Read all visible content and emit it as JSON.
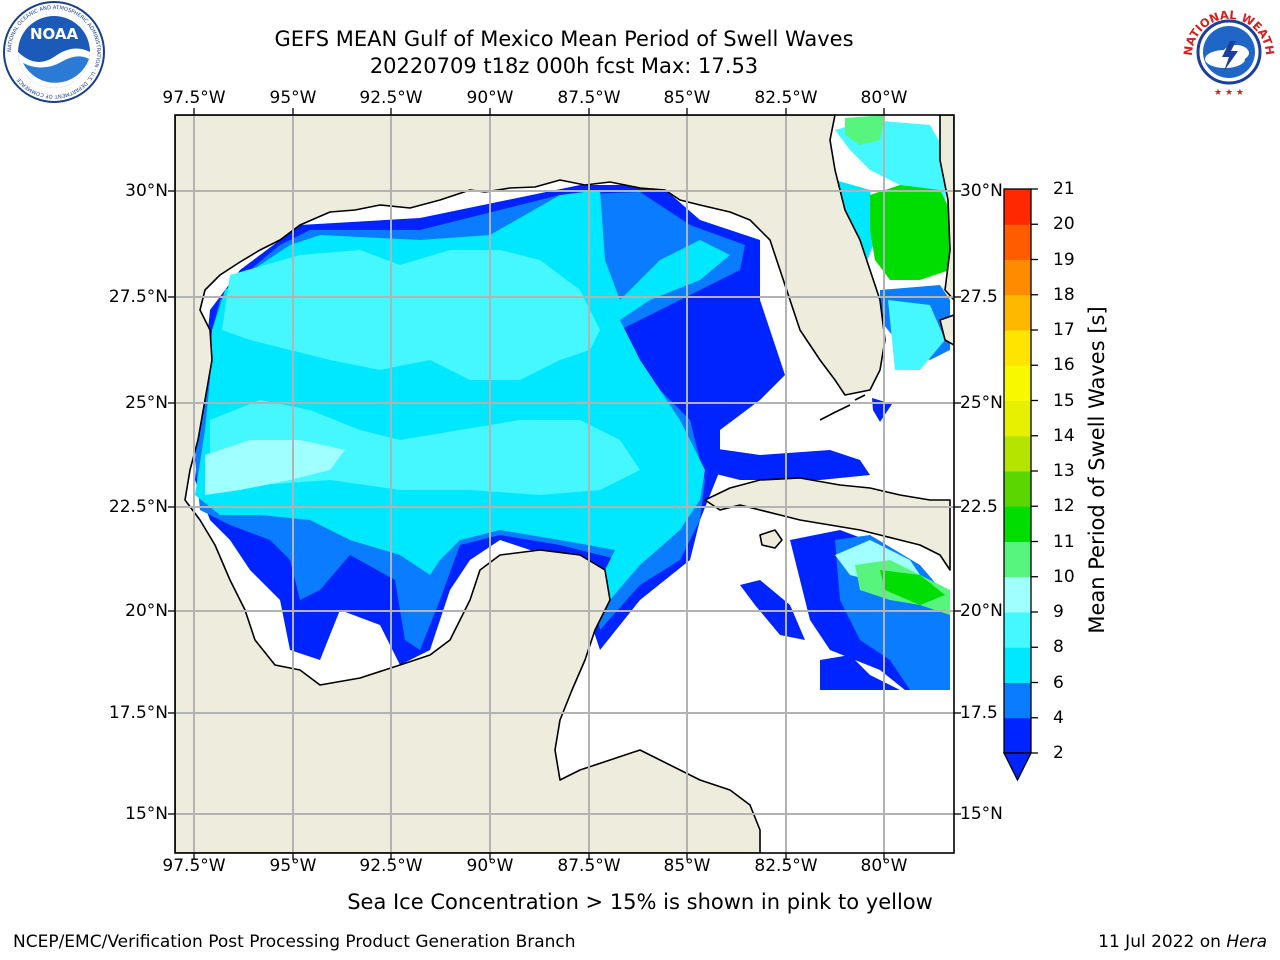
{
  "title": {
    "line1": "GEFS MEAN Gulf of Mexico Mean Period of Swell Waves",
    "line2": "20220709 t18z 000h fcst   Max: 17.53"
  },
  "logos": {
    "left_text": "NOAA",
    "left_ring_text": "NATIONAL OCEANIC AND ATMOSPHERIC ADMINISTRATION · U.S. DEPARTMENT OF COMMERCE",
    "right_ring_text": "NATIONAL WEATHER SERVICE"
  },
  "map": {
    "lon_labels": [
      "97.5°W",
      "95°W",
      "92.5°W",
      "90°W",
      "87.5°W",
      "85°W",
      "82.5°W",
      "80°W"
    ],
    "lat_labels_left": [
      "30°N",
      "27.5°N",
      "25°N",
      "22.5°N",
      "20°N",
      "17.5°N",
      "15°N"
    ],
    "lat_labels_right": [
      "30°N",
      "27.5",
      "25°N",
      "22.5",
      "20°N",
      "17.5",
      "15°N"
    ],
    "lon_range": [
      -98,
      -79.5
    ],
    "lat_range": [
      14,
      31.5
    ],
    "grid": true,
    "colors": {
      "land": "#eeecdd",
      "ocean_nodata": "#ffffff",
      "grid": "#b3b3b3",
      "coast": "#000000"
    }
  },
  "colorbar": {
    "label": "Mean Period of Swell Waves [s]",
    "ticks": [
      "2",
      "4",
      "6",
      "8",
      "9",
      "10",
      "11",
      "12",
      "13",
      "14",
      "15",
      "16",
      "17",
      "18",
      "19",
      "20",
      "21"
    ],
    "colors": [
      "#0024ff",
      "#0a7cff",
      "#00e8ff",
      "#45f7ff",
      "#a0ffff",
      "#57f57e",
      "#00dd00",
      "#5cd600",
      "#b5e400",
      "#e7f000",
      "#f8f800",
      "#ffe400",
      "#ffb800",
      "#ff8c00",
      "#ff5c00",
      "#ff2800",
      "#ff0000"
    ],
    "extend": "min"
  },
  "caption": "Sea Ice Concentration > 15% is shown in pink to yellow",
  "footer": {
    "left": "NCEP/EMC/Verification Post Processing Product Generation Branch",
    "date": "11 Jul 2022 on ",
    "host": "Hera"
  }
}
